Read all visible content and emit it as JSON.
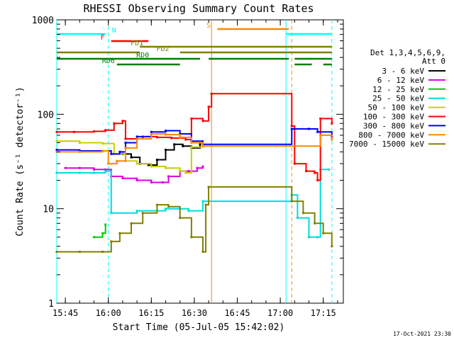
{
  "chart_data": {
    "type": "line",
    "title": "RHESSI Observing Summary Count Rates",
    "xlabel": "Start Time (05-Jul-05 15:42:02)",
    "ylabel": "Count Rate (s⁻¹ detector⁻¹)",
    "yscale": "log",
    "ylim": [
      1,
      1000
    ],
    "xlim": [
      "15:42",
      "17:22"
    ],
    "x_ticks": [
      "15:45",
      "16:00",
      "16:15",
      "16:30",
      "16:45",
      "17:00",
      "17:15"
    ],
    "y_ticks": [
      "1",
      "10",
      "100",
      "1000"
    ],
    "grid": false,
    "legend_title": [
      "Det 1,3,4,5,6,9,",
      "Att 0"
    ],
    "legend_position": "right",
    "timestamp": "17-Oct-2021 23:30",
    "series": [
      {
        "name": "3 - 6 keV",
        "color": "#000000",
        "points": [
          [
            "16:05",
            38
          ],
          [
            "16:08",
            35
          ],
          [
            "16:11",
            30
          ],
          [
            "16:14",
            29
          ],
          [
            "16:17",
            33
          ],
          [
            "16:20",
            42
          ],
          [
            "16:23",
            48
          ],
          [
            "16:26",
            46
          ],
          [
            "16:29",
            44
          ],
          [
            "16:32",
            48
          ]
        ]
      },
      {
        "name": "6 - 12 keV",
        "color": "#dd00dd",
        "points": [
          [
            "15:45",
            27
          ],
          [
            "15:50",
            27
          ],
          [
            "15:55",
            26
          ],
          [
            "15:59",
            26
          ],
          [
            "16:01",
            22
          ],
          [
            "16:05",
            21
          ],
          [
            "16:10",
            20
          ],
          [
            "16:15",
            19
          ],
          [
            "16:19",
            19
          ],
          [
            "16:21",
            22
          ],
          [
            "16:25",
            25
          ],
          [
            "16:28",
            25
          ],
          [
            "16:31",
            27
          ],
          [
            "16:33",
            28
          ]
        ]
      },
      {
        "name": "12 - 25 keV",
        "color": "#00cc00",
        "points": [
          [
            "15:55",
            5
          ],
          [
            "15:58",
            5.5
          ],
          [
            "15:59",
            6.8
          ]
        ]
      },
      {
        "name": "25 - 50 keV",
        "color": "#00dddd",
        "points": [
          [
            "15:42",
            24
          ],
          [
            "15:50",
            24
          ],
          [
            "15:55",
            24
          ],
          [
            "15:59",
            25
          ],
          [
            "16:01",
            9
          ],
          [
            "16:10",
            9.5
          ],
          [
            "16:20",
            10
          ],
          [
            "16:25",
            10
          ],
          [
            "16:28",
            9.5
          ],
          [
            "16:33",
            12
          ],
          [
            "17:04",
            14
          ],
          [
            "17:06",
            8
          ],
          [
            "17:10",
            5
          ],
          [
            "17:13",
            5
          ],
          [
            "17:14",
            26
          ],
          [
            "17:17",
            26
          ]
        ]
      },
      {
        "name": "50 - 100 keV",
        "color": "#cccc00",
        "points": [
          [
            "15:42",
            52
          ],
          [
            "15:50",
            50
          ],
          [
            "15:58",
            49
          ],
          [
            "16:02",
            38
          ],
          [
            "16:06",
            32
          ],
          [
            "16:10",
            30
          ],
          [
            "16:15",
            28
          ],
          [
            "16:20",
            27
          ],
          [
            "16:25",
            25
          ],
          [
            "16:27",
            24
          ],
          [
            "16:29",
            45
          ],
          [
            "16:33",
            52
          ]
        ]
      },
      {
        "name": "100 - 300 keV",
        "color": "#ff0000",
        "points": [
          [
            "15:42",
            65
          ],
          [
            "15:48",
            65
          ],
          [
            "15:55",
            66
          ],
          [
            "15:59",
            68
          ],
          [
            "16:02",
            80
          ],
          [
            "16:05",
            85
          ],
          [
            "16:06",
            55
          ],
          [
            "16:12",
            58
          ],
          [
            "16:17",
            57
          ],
          [
            "16:22",
            56
          ],
          [
            "16:27",
            54
          ],
          [
            "16:29",
            90
          ],
          [
            "16:33",
            85
          ],
          [
            "16:35",
            120
          ],
          [
            "16:36",
            165
          ],
          [
            "17:04",
            75
          ],
          [
            "17:05",
            30
          ],
          [
            "17:09",
            25
          ],
          [
            "17:12",
            24
          ],
          [
            "17:13",
            20
          ],
          [
            "17:14",
            90
          ],
          [
            "17:18",
            80
          ]
        ]
      },
      {
        "name": "300 - 800 keV",
        "color": "#0000ff",
        "points": [
          [
            "15:42",
            42
          ],
          [
            "15:50",
            41
          ],
          [
            "15:58",
            41
          ],
          [
            "16:01",
            38
          ],
          [
            "16:04",
            40
          ],
          [
            "16:06",
            50
          ],
          [
            "16:10",
            58
          ],
          [
            "16:15",
            65
          ],
          [
            "16:20",
            67
          ],
          [
            "16:25",
            62
          ],
          [
            "16:29",
            52
          ],
          [
            "16:33",
            48
          ],
          [
            "17:04",
            70
          ],
          [
            "17:10",
            70
          ],
          [
            "17:13",
            65
          ],
          [
            "17:18",
            58
          ]
        ]
      },
      {
        "name": "800 - 7000 keV",
        "color": "#ff8800",
        "points": [
          [
            "15:42",
            40
          ],
          [
            "15:50",
            40
          ],
          [
            "15:58",
            41
          ],
          [
            "16:00",
            30
          ],
          [
            "16:03",
            32
          ],
          [
            "16:06",
            44
          ],
          [
            "16:10",
            55
          ],
          [
            "16:15",
            62
          ],
          [
            "16:20",
            61
          ],
          [
            "16:25",
            57
          ],
          [
            "16:29",
            50
          ],
          [
            "16:33",
            46
          ],
          [
            "17:14",
            60
          ],
          [
            "17:18",
            54
          ]
        ]
      },
      {
        "name": "7000 - 15000 keV",
        "color": "#808000",
        "points": [
          [
            "15:42",
            3.5
          ],
          [
            "15:50",
            3.5
          ],
          [
            "15:58",
            3.5
          ],
          [
            "16:01",
            4.5
          ],
          [
            "16:04",
            5.5
          ],
          [
            "16:08",
            7
          ],
          [
            "16:12",
            9
          ],
          [
            "16:17",
            11
          ],
          [
            "16:21",
            10.5
          ],
          [
            "16:25",
            8
          ],
          [
            "16:29",
            5
          ],
          [
            "16:33",
            3.5
          ],
          [
            "16:34",
            11
          ],
          [
            "16:35",
            17
          ],
          [
            "17:04",
            12
          ],
          [
            "17:08",
            9
          ],
          [
            "17:12",
            7
          ],
          [
            "17:15",
            5.5
          ],
          [
            "17:18",
            4
          ]
        ]
      }
    ],
    "flags": [
      {
        "label": "N",
        "color": "#00ffff",
        "segments": [
          [
            "15:42",
            "15:59"
          ],
          [
            "17:02",
            "17:18"
          ]
        ]
      },
      {
        "label": "S",
        "color": "#ff8800",
        "segments": [
          [
            "16:38",
            "17:03"
          ]
        ]
      },
      {
        "label": "F",
        "color": "#ff0000",
        "segments": [
          [
            "16:01",
            "16:14"
          ]
        ]
      },
      {
        "label": "FD1",
        "color": "#808000",
        "segments": [
          [
            "16:11",
            "17:18"
          ]
        ]
      },
      {
        "label": "FD2",
        "color": "#808000",
        "segments": [
          [
            "15:42",
            "16:11"
          ],
          [
            "16:25",
            "17:18"
          ]
        ]
      },
      {
        "label": "RD0",
        "color": "#008000",
        "segments": [
          [
            "15:42",
            "16:32"
          ],
          [
            "16:35",
            "17:03"
          ],
          [
            "17:05",
            "17:18"
          ]
        ]
      },
      {
        "label": "RD6",
        "color": "#008000",
        "segments": [
          [
            "16:03",
            "16:25"
          ],
          [
            "17:05",
            "17:11"
          ],
          [
            "17:15",
            "17:18"
          ]
        ]
      }
    ],
    "vlines": [
      {
        "time": "15:42",
        "color": "#00ffff",
        "style": "solid"
      },
      {
        "time": "16:00",
        "color": "#00ffff",
        "style": "dashed"
      },
      {
        "time": "16:36",
        "color": "#ff8800",
        "style": "solid"
      },
      {
        "time": "17:02",
        "color": "#00ffff",
        "style": "solid"
      },
      {
        "time": "17:04",
        "color": "#ff8800",
        "style": "dashed"
      },
      {
        "time": "17:18",
        "color": "#00ffff",
        "style": "dashed"
      }
    ]
  }
}
